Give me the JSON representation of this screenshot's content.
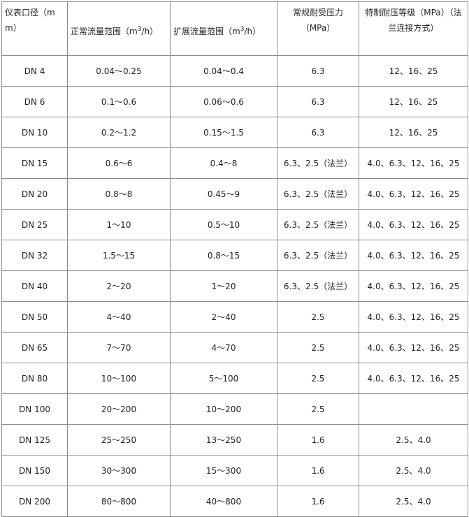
{
  "headers": {
    "size": "仪表口径（m m）",
    "normal_pre": "正常流量范围（m",
    "normal_sup": "3",
    "normal_post": "/h）",
    "ext_pre": "扩展流量范围（m",
    "ext_sup": "3",
    "ext_post": "/h）",
    "pressure": "常规耐受压力（MPa）",
    "special": "特制耐压等级（MPa）（法兰连接方式）"
  },
  "rows": [
    [
      "DN 4",
      "0.04～0.25",
      "0.04～0.4",
      "6.3",
      "12、16、25"
    ],
    [
      "DN 6",
      "0.1～0.6",
      "0.06～0.6",
      "6.3",
      "12、16、25"
    ],
    [
      "DN 10",
      "0.2～1.2",
      "0.15～1.5",
      "6.3",
      "12、16、25"
    ],
    [
      "DN 15",
      "0.6～6",
      "0.4～8",
      "6.3、2.5（法兰）",
      "4.0、6.3、12、16、25"
    ],
    [
      "DN 20",
      "0.8～8",
      "0.45～9",
      "6.3、2.5（法兰）",
      "4.0、6.3、12、16、25"
    ],
    [
      "DN 25",
      "1～10",
      "0.5～10",
      "6.3、2.5（法兰）",
      "4.0、6.3、12、16、25"
    ],
    [
      "DN 32",
      "1.5～15",
      "0.8～15",
      "6.3、2.5（法兰）",
      "4.0、6.3、12、16、25"
    ],
    [
      "DN 40",
      "2～20",
      "1～20",
      "6.3、2.5（法兰）",
      "4.0、6.3、12、16、25"
    ],
    [
      "DN 50",
      "4～40",
      "2～40",
      "2.5",
      "4.0、6.3、12、16、25"
    ],
    [
      "DN 65",
      "7～70",
      "4～70",
      "2.5",
      "4.0、6.3、12、16、25"
    ],
    [
      "DN 80",
      "10～100",
      "5～100",
      "2.5",
      "4.0、6.3、12、16、25"
    ],
    [
      "DN 100",
      "20～200",
      "10～200",
      "2.5",
      ""
    ],
    [
      "DN 125",
      "25～250",
      "13～250",
      "1.6",
      "2.5、4.0"
    ],
    [
      "DN 150",
      "30～300",
      "15～300",
      "1.6",
      "2.5、4.0"
    ],
    [
      "DN 200",
      "80～800",
      "40～800",
      "1.6",
      "2.5、4.0"
    ]
  ]
}
